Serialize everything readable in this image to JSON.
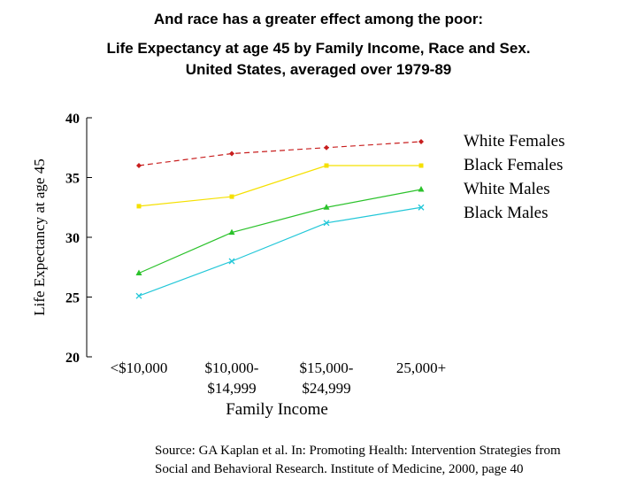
{
  "title": "And race has a greater effect among the poor:",
  "subtitle_line1": "Life Expectancy at age 45 by Family Income, Race and Sex.",
  "subtitle_line2": "United States, averaged over 1979-89",
  "source_line1": "Source: GA Kaplan et al.  In: Promoting Health: Intervention Strategies from",
  "source_line2": "Social and Behavioral Research.  Institute of Medicine, 2000, page 40",
  "chart_data": {
    "type": "line",
    "xlabel": "Family Income",
    "ylabel": "Life Expectancy at age 45",
    "categories": [
      [
        "<$10,000"
      ],
      [
        "$10,000-",
        "$14,999"
      ],
      [
        "$15,000-",
        "$24,999"
      ],
      [
        "25,000+"
      ]
    ],
    "ylim": [
      20,
      40
    ],
    "yticks": [
      20,
      25,
      30,
      35,
      40
    ],
    "grid": false,
    "legend_position": "right",
    "series": [
      {
        "name": "White Females",
        "values": [
          36.0,
          37.0,
          37.5,
          38.0
        ],
        "color": "#c81e1e",
        "marker": "diamond",
        "dash": "6,4"
      },
      {
        "name": "Black Females",
        "values": [
          32.6,
          33.4,
          36.0,
          36.0
        ],
        "color": "#f5e000",
        "marker": "square",
        "dash": ""
      },
      {
        "name": "White Males",
        "values": [
          27.0,
          30.4,
          32.5,
          34.0
        ],
        "color": "#2bc22b",
        "marker": "triangle",
        "dash": ""
      },
      {
        "name": "Black Males",
        "values": [
          25.1,
          28.0,
          31.2,
          32.5
        ],
        "color": "#22c7d8",
        "marker": "x",
        "dash": ""
      }
    ]
  }
}
